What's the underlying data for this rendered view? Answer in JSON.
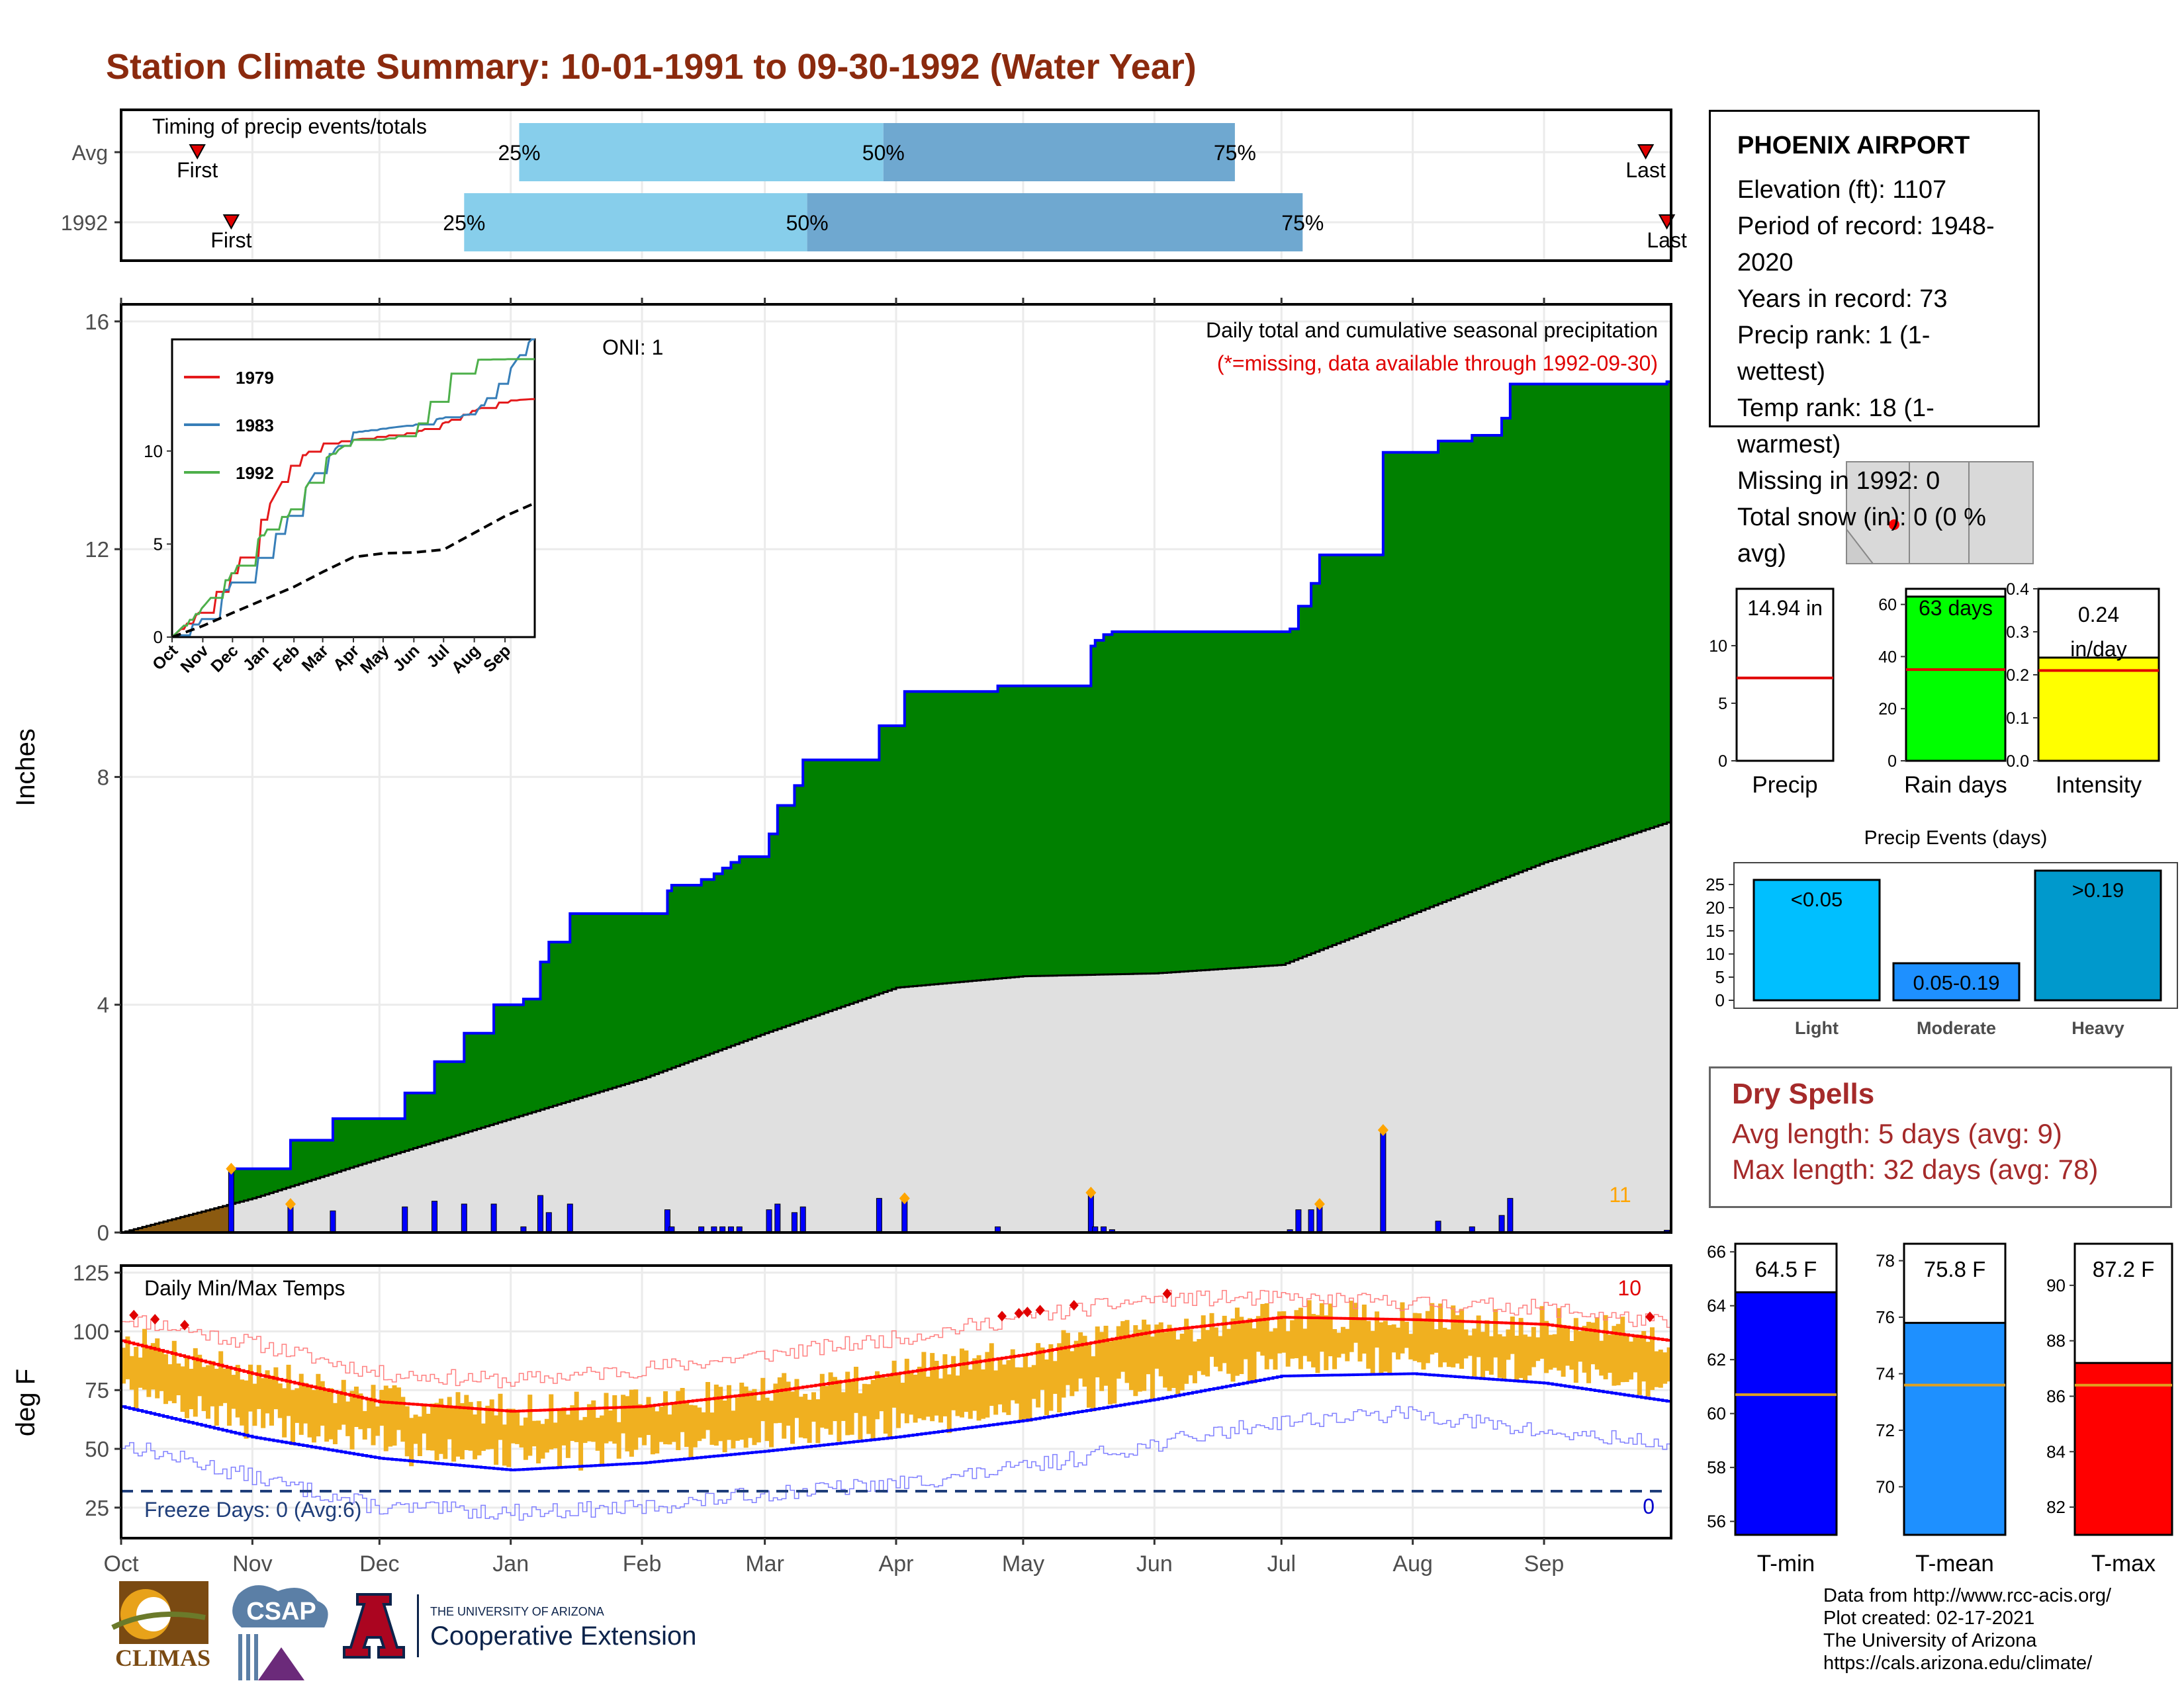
{
  "title": "Station Climate Summary: 10-01-1991 to 09-30-1992 (Water Year)",
  "colors": {
    "title": "#8b2a0e",
    "cum_fill": "#008000",
    "cum_line": "#0000ff",
    "avg_fill": "#e0e0e0",
    "pre_season": "#8b5a10",
    "daily_bar": "#0000ff",
    "extreme_marker": "#ffa500",
    "temp_range": "#f0b020",
    "tmax_avg": "#ff0000",
    "tmin_avg": "#0000ff",
    "freeze_line": "#1f3e7a",
    "timing_light": "#87ceeb",
    "timing_dark": "#6fa8d0"
  },
  "timing": {
    "label": "Timing of precip events/totals",
    "rows": [
      {
        "name": "Avg",
        "first": "First",
        "last": "Last",
        "p25": "25%",
        "p50": "50%",
        "p75": "75%",
        "first_val": "Oct 19",
        "p25_val": "Jan 3",
        "p50_val": "Mar 29",
        "p75_val": "Jun 20",
        "last_val": "Sep 25"
      },
      {
        "name": "1992",
        "first": "First",
        "last": "Last",
        "p25": "25%",
        "p50": "50%",
        "p75": "75%",
        "first_val": "Oct 27",
        "p25_val": "Dec 21",
        "p50_val": "Mar 11",
        "p75_val": "Jul 6",
        "last_val": "Sep 30"
      }
    ]
  },
  "main": {
    "ylabel": "Inches",
    "oni": "ONI: 1",
    "subtitle": "Daily total and cumulative seasonal precipitation",
    "subtitle2": "(*=missing, data available through 1992-09-30)",
    "corner_count": "11",
    "y_ticks": [
      "0",
      "4",
      "8",
      "12",
      "16"
    ]
  },
  "inset": {
    "x_ticks": [
      "Oct",
      "Nov",
      "Dec",
      "Jan",
      "Feb",
      "Mar",
      "Apr",
      "May",
      "Jun",
      "Jul",
      "Aug",
      "Sep"
    ],
    "y_ticks": [
      "0",
      "5",
      "10"
    ],
    "legend": [
      {
        "name": "1979",
        "color": "#e41a1c"
      },
      {
        "name": "1983",
        "color": "#377eb8"
      },
      {
        "name": "1992",
        "color": "#4daf4a"
      }
    ]
  },
  "temps": {
    "label": "Daily Min/Max Temps",
    "ylabel": "deg F",
    "y_ticks": [
      "25",
      "50",
      "75",
      "100",
      "125"
    ],
    "hot_count": "10",
    "cold_count": "0",
    "freeze_text": "Freeze Days: 0 (Avg:6)",
    "months": [
      "Oct",
      "Nov",
      "Dec",
      "Jan",
      "Feb",
      "Mar",
      "Apr",
      "May",
      "Jun",
      "Jul",
      "Aug",
      "Sep"
    ]
  },
  "station": {
    "name": "PHOENIX AIRPORT",
    "lines": [
      "Elevation (ft): 1107",
      "Period of record: 1948-2020",
      "Years in record: 73",
      "Precip rank: 1 (1-wettest)",
      "Temp rank: 18 (1-warmest)",
      "Missing in 1992: 0",
      "Total snow (in): 0 (0 % avg)"
    ]
  },
  "mini_bars": [
    {
      "label": "Precip",
      "value_text": "14.94 in",
      "value": 14.94,
      "avg": 7.2,
      "ymax": 14.94,
      "ticks": [
        "0",
        "5",
        "10"
      ],
      "color": "#ffffff"
    },
    {
      "label": "Rain days",
      "value_text": "63 days",
      "value": 63,
      "avg": 35,
      "ymax": 66,
      "ticks": [
        "0",
        "20",
        "40",
        "60"
      ],
      "color": "#00ff00"
    },
    {
      "label": "Intensity",
      "value_text_1": "0.24",
      "value_text_2": "in/day",
      "value": 0.24,
      "avg": 0.21,
      "ymax": 0.4,
      "ticks": [
        "0.0",
        "0.1",
        "0.2",
        "0.3",
        "0.4"
      ],
      "color": "#ffff00"
    }
  ],
  "events": {
    "title": "Precip Events (days)",
    "y_ticks": [
      "0",
      "5",
      "10",
      "15",
      "20",
      "25"
    ],
    "bars": [
      {
        "category": "Light",
        "label": "<0.05",
        "value": 26,
        "color": "#00bfff"
      },
      {
        "category": "Moderate",
        "label": "0.05-0.19",
        "value": 8,
        "color": "#1e90ff"
      },
      {
        "category": "Heavy",
        "label": ">0.19",
        "value": 28,
        "color": "#0099cc"
      }
    ]
  },
  "dry_spells": {
    "title": "Dry Spells",
    "avg_line": "Avg length: 5 days (avg: 9)",
    "max_line": "Max length: 32 days (avg: 78)"
  },
  "temp_bars": [
    {
      "label": "T-min",
      "value_text": "64.5 F",
      "value": 64.5,
      "avg": 60.7,
      "ymin": 55.5,
      "ymax": 66.3,
      "ticks": [
        "56",
        "58",
        "60",
        "62",
        "64",
        "66"
      ],
      "color": "#0000ff"
    },
    {
      "label": "T-mean",
      "value_text": "75.8 F",
      "value": 75.8,
      "avg": 73.6,
      "ymin": 68.3,
      "ymax": 78.6,
      "ticks": [
        "70",
        "72",
        "74",
        "76",
        "78"
      ],
      "color": "#1e90ff"
    },
    {
      "label": "T-max",
      "value_text": "87.2 F",
      "value": 87.2,
      "avg": 86.4,
      "ymin": 81.0,
      "ymax": 91.5,
      "ticks": [
        "82",
        "84",
        "86",
        "88",
        "90"
      ],
      "color": "#ff0000"
    }
  ],
  "footer": [
    "Data from http://www.rcc-acis.org/",
    "Plot created: 02-17-2021",
    "The University of Arizona",
    "https://cals.arizona.edu/climate/"
  ],
  "logos": {
    "climas": "CLIMAS",
    "csap": "CSAP",
    "ua_small": "THE UNIVERSITY OF ARIZONA",
    "ua_big": "Cooperative Extension"
  },
  "chart_data": [
    {
      "type": "area",
      "title": "Daily total and cumulative seasonal precipitation",
      "ylabel": "Inches",
      "ylim": [
        0,
        16.3
      ],
      "x_range": [
        "1991-10-01",
        "1992-09-30"
      ],
      "x_labels": [
        "Oct",
        "Nov",
        "Dec",
        "Jan",
        "Feb",
        "Mar",
        "Apr",
        "May",
        "Jun",
        "Jul",
        "Aug",
        "Sep"
      ],
      "grid": true,
      "series": [
        {
          "name": "1992",
          "x": [
            "1991-10-27",
            "1991-11-10",
            "1991-11-20",
            "1991-12-07",
            "1991-12-14",
            "1991-12-21",
            "1991-12-28",
            "1992-01-04",
            "1992-01-08",
            "1992-01-10",
            "1992-01-15",
            "1992-02-07",
            "1992-02-08",
            "1992-02-15",
            "1992-02-18",
            "1992-02-20",
            "1992-02-22",
            "1992-02-24",
            "1992-03-02",
            "1992-03-04",
            "1992-03-08",
            "1992-03-10",
            "1992-03-28",
            "1992-04-03",
            "1992-04-25",
            "1992-05-17",
            "1992-05-18",
            "1992-05-20",
            "1992-05-22",
            "1992-07-03",
            "1992-07-05",
            "1992-07-08",
            "1992-07-10",
            "1992-07-25",
            "1992-08-07",
            "1992-08-15",
            "1992-08-22",
            "1992-08-24",
            "1992-09-30"
          ],
          "y": [
            1.12,
            1.62,
            2.0,
            2.45,
            3.0,
            3.5,
            4.0,
            4.1,
            4.75,
            5.1,
            5.6,
            6.0,
            6.1,
            6.2,
            6.3,
            6.4,
            6.5,
            6.6,
            7.0,
            7.5,
            7.85,
            8.3,
            8.9,
            9.5,
            9.6,
            10.3,
            10.4,
            10.5,
            10.55,
            10.6,
            11.0,
            11.4,
            11.9,
            13.7,
            13.9,
            14.0,
            14.3,
            14.9,
            14.94
          ]
        },
        {
          "name": "Average",
          "x": [
            "1991-10-01",
            "1991-11-01",
            "1991-12-01",
            "1992-01-01",
            "1992-02-01",
            "1992-03-01",
            "1992-04-01",
            "1992-05-01",
            "1992-06-01",
            "1992-07-01",
            "1992-08-01",
            "1992-09-01",
            "1992-09-30"
          ],
          "y": [
            0,
            0.6,
            1.3,
            2.0,
            2.7,
            3.5,
            4.3,
            4.5,
            4.55,
            4.7,
            5.6,
            6.5,
            7.2
          ]
        }
      ],
      "daily_extremes": [
        "1991-10-27",
        "1991-11-10",
        "1992-03-07",
        "1992-03-30",
        "1992-04-03",
        "1992-05-01",
        "1992-05-17",
        "1992-07-10",
        "1992-07-25",
        "1992-08-21"
      ]
    },
    {
      "type": "line",
      "title": "",
      "x_labels": [
        "Oct",
        "Nov",
        "Dec",
        "Jan",
        "Feb",
        "Mar",
        "Apr",
        "May",
        "Jun",
        "Jul",
        "Aug",
        "Sep"
      ],
      "ylim": [
        0,
        16
      ],
      "series": [
        {
          "name": "1979",
          "x": [
            "Oct",
            "Nov",
            "Dec",
            "Jan",
            "Feb",
            "Mar",
            "Apr",
            "May",
            "Jun",
            "Jul",
            "Aug",
            "Sep",
            "Sep-end"
          ],
          "y": [
            0,
            1.5,
            3.5,
            6.5,
            9.5,
            10.4,
            10.6,
            10.8,
            11.0,
            11.5,
            12.2,
            12.7,
            12.8
          ]
        },
        {
          "name": "1983",
          "x": [
            "Oct",
            "Nov",
            "Dec",
            "Jan",
            "Feb",
            "Mar",
            "Apr",
            "May",
            "Jun",
            "Jul",
            "Aug",
            "Sep",
            "Sep-end"
          ],
          "y": [
            0,
            1.0,
            3.0,
            4.5,
            7.0,
            9.5,
            11.0,
            11.2,
            11.4,
            11.8,
            12.0,
            14.0,
            16.3
          ]
        },
        {
          "name": "1992",
          "x": [
            "Oct",
            "Nov",
            "Dec",
            "Jan",
            "Feb",
            "Mar",
            "Apr",
            "May",
            "Jun",
            "Jul",
            "Aug",
            "Sep",
            "Sep-end"
          ],
          "y": [
            0,
            1.6,
            3.5,
            5.6,
            7.0,
            9.5,
            10.6,
            10.6,
            11.0,
            13.9,
            14.9,
            14.94,
            14.94
          ]
        },
        {
          "name": "Average",
          "x": [
            "Oct",
            "Nov",
            "Dec",
            "Jan",
            "Feb",
            "Mar",
            "Apr",
            "May",
            "Jun",
            "Jul",
            "Aug",
            "Sep",
            "Sep-end"
          ],
          "y": [
            0,
            0.6,
            1.3,
            2.0,
            2.7,
            3.5,
            4.3,
            4.5,
            4.55,
            4.7,
            5.6,
            6.5,
            7.2
          ]
        }
      ]
    },
    {
      "type": "line",
      "title": "Daily Min/Max Temps",
      "ylabel": "deg F",
      "ylim": [
        12,
        128
      ],
      "x_labels": [
        "Oct",
        "Nov",
        "Dec",
        "Jan",
        "Feb",
        "Mar",
        "Apr",
        "May",
        "Jun",
        "Jul",
        "Aug",
        "Sep"
      ],
      "series": [
        {
          "name": "Avg Tmax",
          "x": [
            "Oct",
            "Nov",
            "Dec",
            "Jan",
            "Feb",
            "Mar",
            "Apr",
            "May",
            "Jun",
            "Jul",
            "Aug",
            "Sep",
            "Sep-end"
          ],
          "y": [
            96,
            82,
            70,
            66,
            68,
            74,
            82,
            90,
            100,
            106,
            105,
            103,
            96
          ]
        },
        {
          "name": "Avg Tmin",
          "x": [
            "Oct",
            "Nov",
            "Dec",
            "Jan",
            "Feb",
            "Mar",
            "Apr",
            "May",
            "Jun",
            "Jul",
            "Aug",
            "Sep",
            "Sep-end"
          ],
          "y": [
            68,
            55,
            46,
            41,
            44,
            49,
            55,
            62,
            71,
            81,
            82,
            78,
            70
          ]
        },
        {
          "name": "Record high",
          "x": [
            "Oct",
            "Nov",
            "Dec",
            "Jan",
            "Feb",
            "Mar",
            "Apr",
            "May",
            "Jun",
            "Jul",
            "Aug",
            "Sep",
            "Sep-end"
          ],
          "y": [
            106,
            95,
            82,
            79,
            84,
            90,
            97,
            106,
            114,
            114,
            112,
            110,
            103
          ]
        },
        {
          "name": "Record low",
          "x": [
            "Oct",
            "Nov",
            "Dec",
            "Jan",
            "Feb",
            "Mar",
            "Apr",
            "May",
            "Jun",
            "Jul",
            "Aug",
            "Sep",
            "Sep-end"
          ],
          "y": [
            52,
            38,
            25,
            23,
            25,
            31,
            35,
            42,
            52,
            62,
            65,
            57,
            52
          ]
        }
      ],
      "freeze_threshold": 32
    },
    {
      "type": "bar",
      "title": "Precip Events (days)",
      "categories": [
        "Light",
        "Moderate",
        "Heavy"
      ],
      "values": [
        26,
        8,
        28
      ],
      "ylim": [
        0,
        28
      ]
    },
    {
      "type": "bar",
      "categories": [
        "Precip",
        "Rain days",
        "Intensity"
      ],
      "values": [
        14.94,
        63,
        0.24
      ],
      "averages": [
        7.2,
        35,
        0.21
      ]
    },
    {
      "type": "bar",
      "categories": [
        "T-min",
        "T-mean",
        "T-max"
      ],
      "values": [
        64.5,
        75.8,
        87.2
      ],
      "averages": [
        60.7,
        73.6,
        86.4
      ]
    }
  ]
}
